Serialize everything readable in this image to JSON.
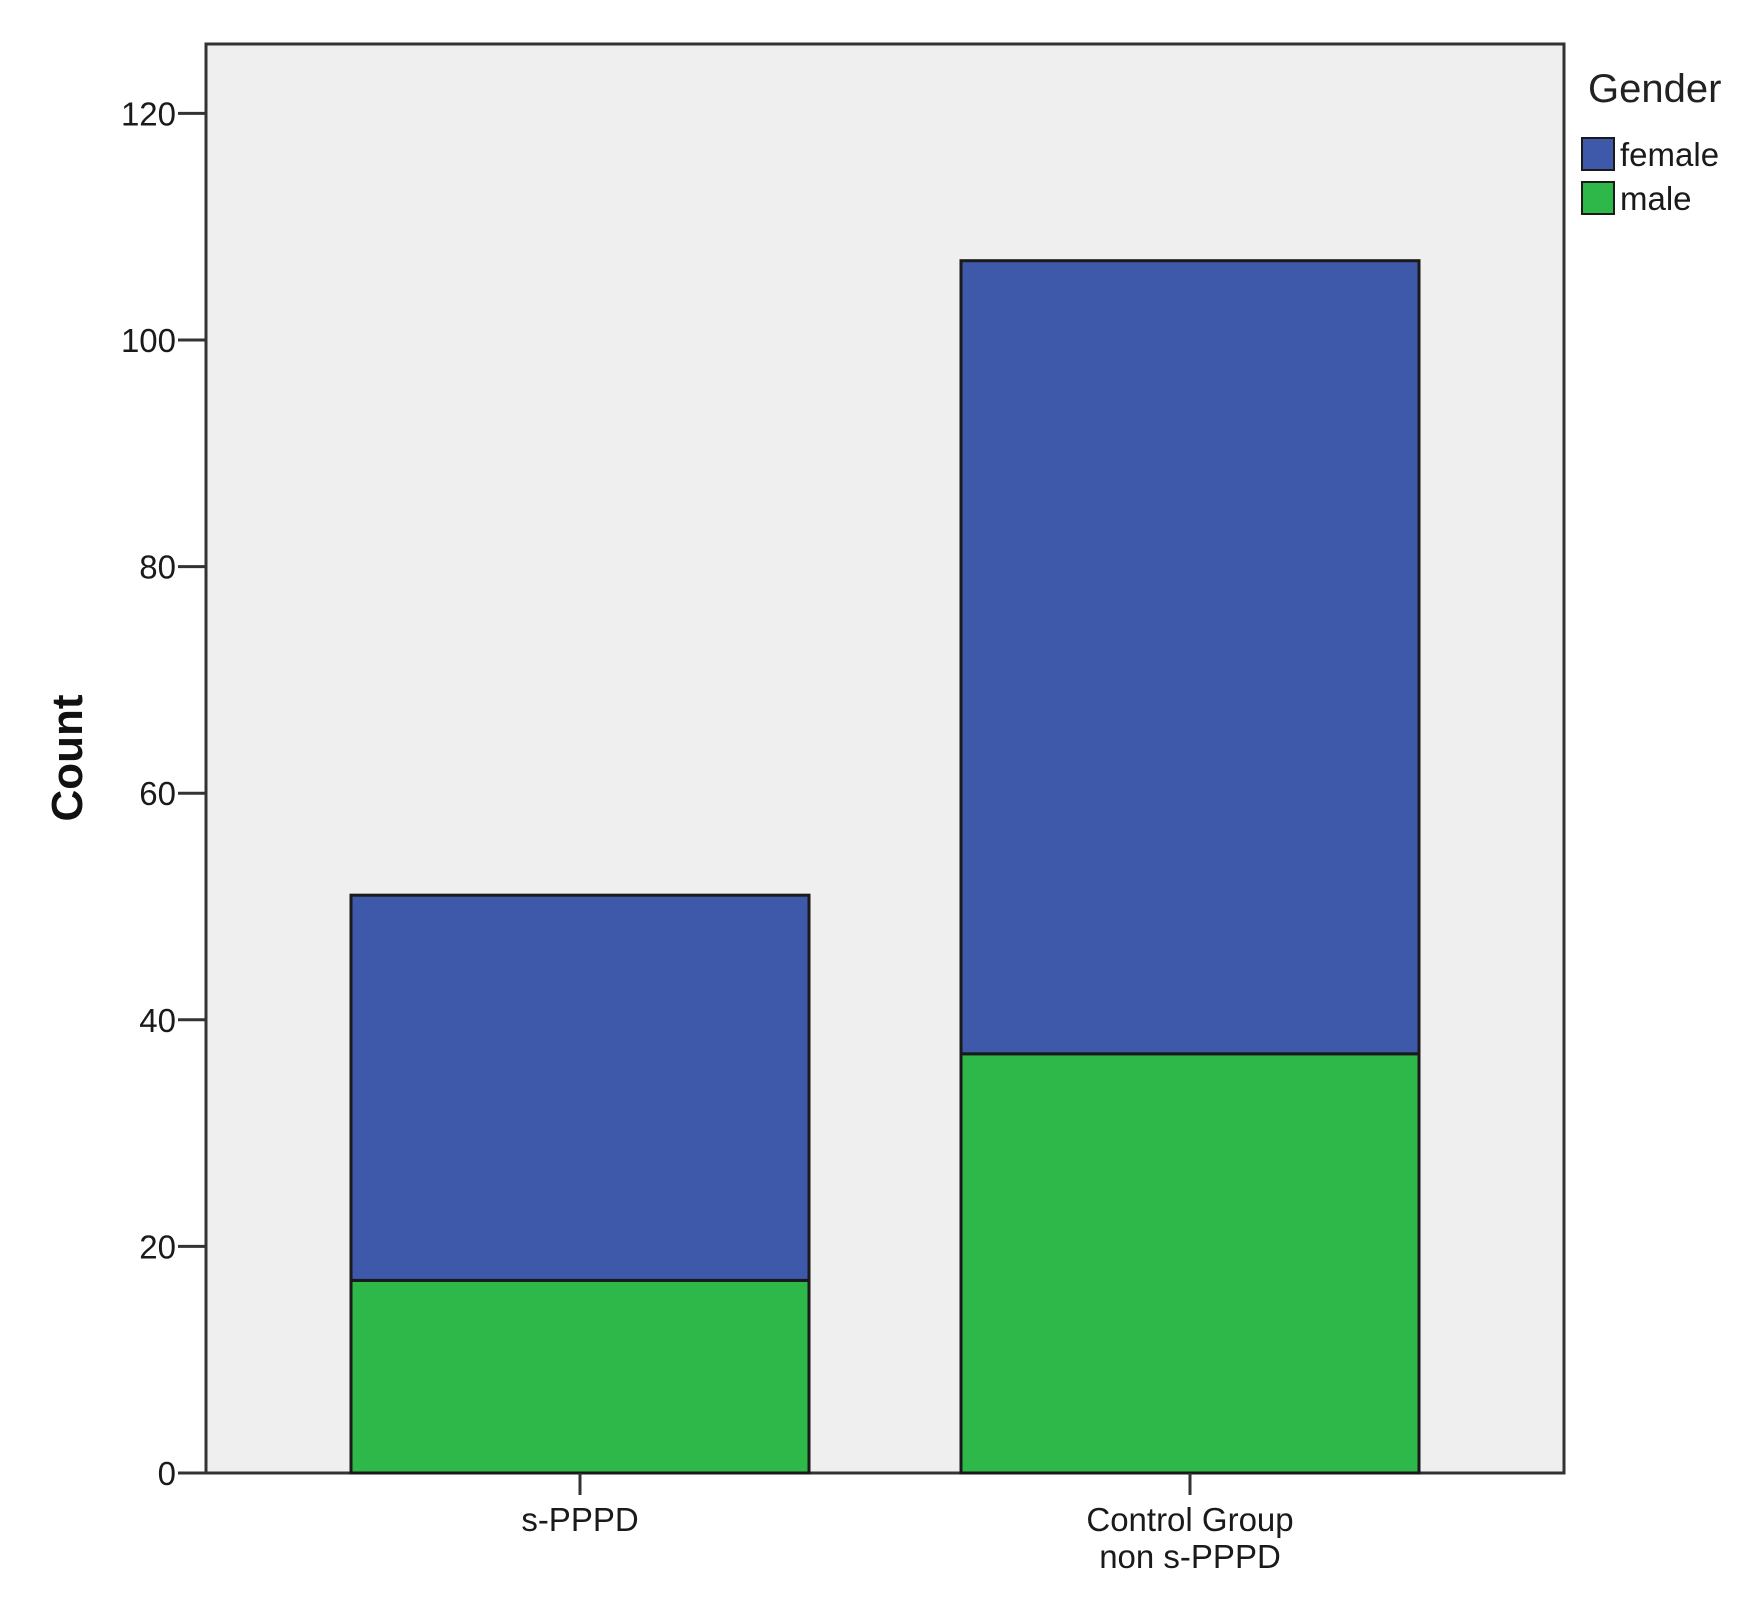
{
  "chart_data": {
    "type": "bar",
    "stacked": true,
    "categories": [
      [
        "s-PPPD"
      ],
      [
        "Control Group",
        "non s-PPPD"
      ]
    ],
    "series": [
      {
        "name": "male",
        "values": [
          17,
          37
        ],
        "color": "#2fb84a"
      },
      {
        "name": "female",
        "values": [
          34,
          70
        ],
        "color": "#3e58aa"
      }
    ],
    "xlabel": "",
    "ylabel": "Count",
    "ylim": [
      0,
      126
    ],
    "yticks": [
      0,
      20,
      40,
      60,
      80,
      100,
      120
    ],
    "legend": {
      "title": "Gender",
      "placement": "right",
      "entries": [
        "female",
        "male"
      ]
    },
    "plot_background": "#efefef",
    "grid": false
  }
}
